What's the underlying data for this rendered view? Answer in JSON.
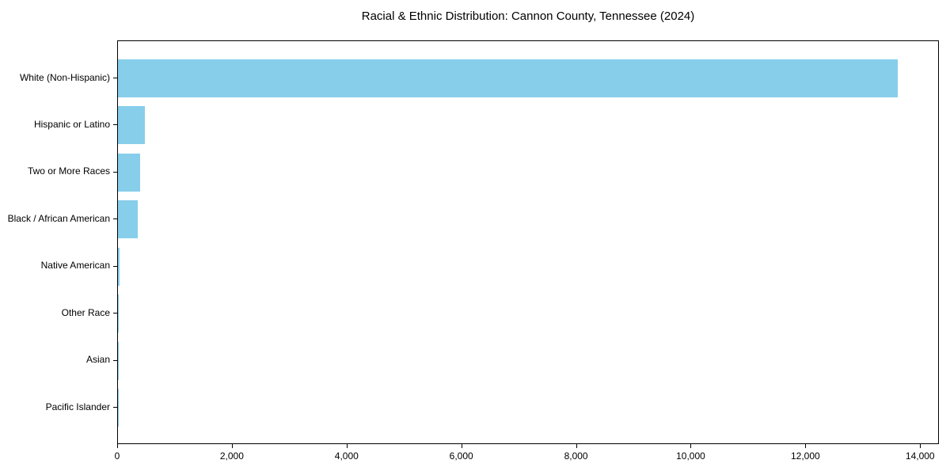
{
  "figure": {
    "background": "#ffffff"
  },
  "chart_data": {
    "type": "bar",
    "orientation": "horizontal",
    "title": "Racial & Ethnic Distribution: Cannon County, Tennessee (2024)",
    "categories": [
      "White (Non-Hispanic)",
      "Hispanic or Latino",
      "Two or More Races",
      "Black / African American",
      "Native American",
      "Other Race",
      "Asian",
      "Pacific Islander"
    ],
    "values": [
      13600,
      470,
      385,
      345,
      28,
      12,
      8,
      3
    ],
    "xlabel": "",
    "ylabel": "",
    "xlim": [
      0,
      14300
    ],
    "x_ticks": [
      0,
      2000,
      4000,
      6000,
      8000,
      10000,
      12000,
      14000
    ],
    "x_tick_labels": [
      "0",
      "2,000",
      "4,000",
      "6,000",
      "8,000",
      "10,000",
      "12,000",
      "14,000"
    ],
    "bar_color": "#87CEEB",
    "axis_color": "#000000",
    "text_color": "#000000",
    "grid": false,
    "legend": null
  }
}
